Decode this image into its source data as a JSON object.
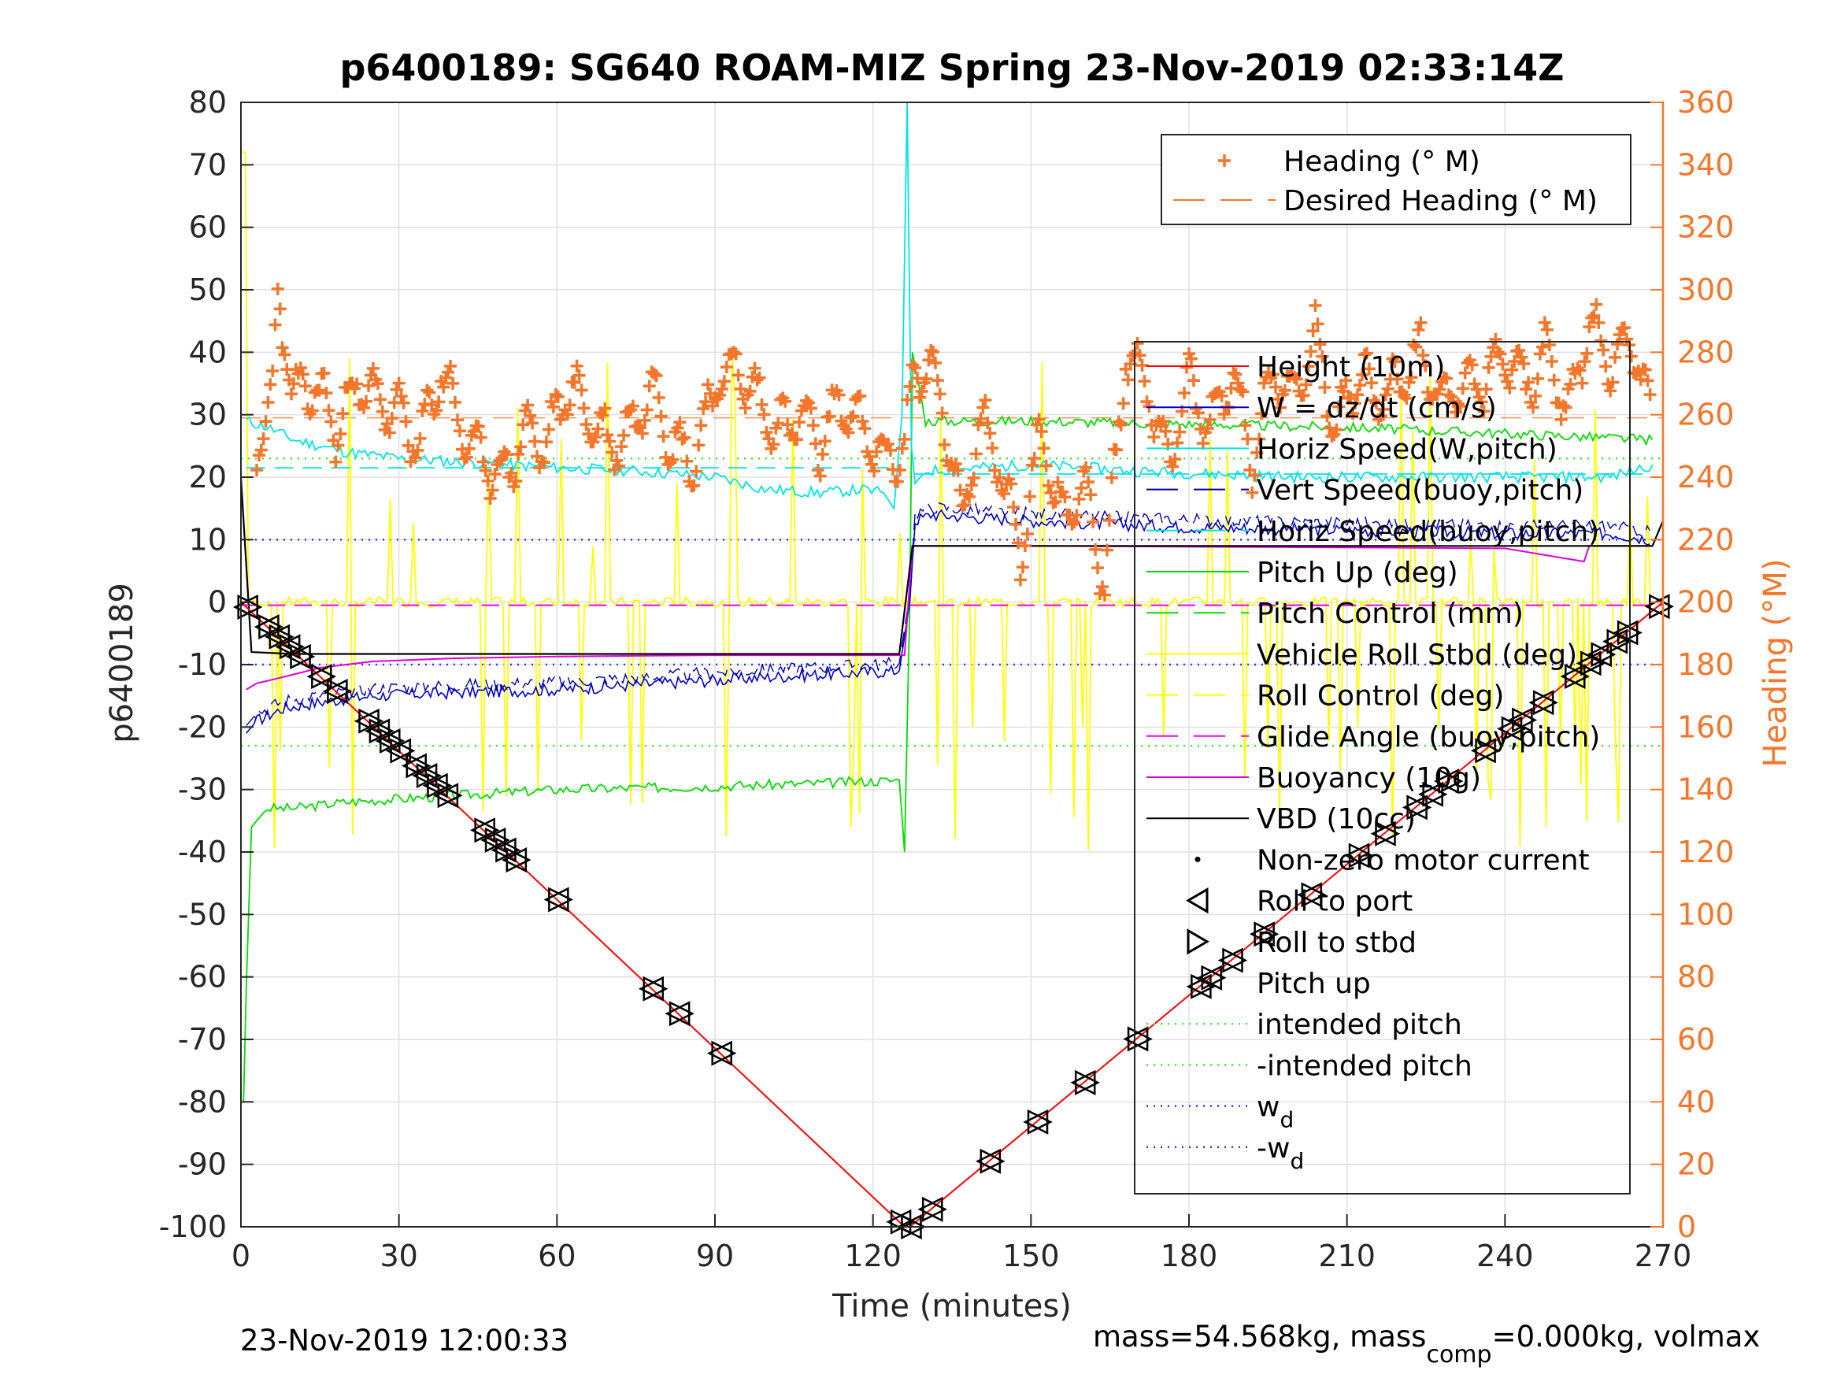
{
  "chart_data": {
    "type": "line",
    "title": "p6400189: SG640 ROAM-MIZ Spring 23-Nov-2019 02:33:14Z",
    "xlabel": "Time (minutes)",
    "ylabel_left": "p6400189",
    "ylabel_right": "Heading (°M)",
    "xlim": [
      0,
      270
    ],
    "ylim_left": [
      -100,
      80
    ],
    "ylim_right": [
      0,
      360
    ],
    "xticks": [
      "0",
      "30",
      "60",
      "90",
      "120",
      "150",
      "180",
      "210",
      "240",
      "270"
    ],
    "yticks_left": [
      "80",
      "70",
      "60",
      "50",
      "40",
      "30",
      "20",
      "10",
      "0",
      "-10",
      "-20",
      "-30",
      "-40",
      "-50",
      "-60",
      "-70",
      "-80",
      "-90",
      "-100"
    ],
    "yticks_right": [
      "360",
      "340",
      "320",
      "300",
      "280",
      "260",
      "240",
      "220",
      "200",
      "180",
      "160",
      "140",
      "120",
      "100",
      "80",
      "60",
      "40",
      "20",
      "0"
    ],
    "grid": true,
    "footer_left": "23-Nov-2019 12:00:33",
    "footer_right_parts": [
      "mass=54.568kg, mass",
      "comp",
      "=0.000kg, volmax"
    ],
    "legend_heading": {
      "placement": "top-right",
      "entries": [
        {
          "label": "Heading (° M)",
          "color": "#f4762a",
          "style": "plus"
        },
        {
          "label": "Desired Heading (° M)",
          "color": "#f4762a",
          "style": "dashed"
        }
      ]
    },
    "legend_main": {
      "placement": "right",
      "entries": [
        {
          "label": "Height (10m)",
          "color": "#ff0000",
          "style": "solid"
        },
        {
          "label": "W = dz/dt (cm/s)",
          "color": "#0000cc",
          "style": "solid"
        },
        {
          "label": "Horiz Speed(W,pitch)",
          "color": "#00e5e5",
          "style": "solid"
        },
        {
          "label": "Vert Speed(buoy,pitch)",
          "color": "#0000aa",
          "style": "dashed"
        },
        {
          "label": "Horiz Speed(buoy,pitch)",
          "color": "#00e5e5",
          "style": "dashed"
        },
        {
          "label": "Pitch Up (deg)",
          "color": "#00dd00",
          "style": "solid"
        },
        {
          "label": "Pitch Control (mm)",
          "color": "#00dd00",
          "style": "dashed"
        },
        {
          "label": "Vehicle Roll Stbd (deg)",
          "color": "#ffff00",
          "style": "solid"
        },
        {
          "label": "Roll Control (deg)",
          "color": "#ffff00",
          "style": "dashed"
        },
        {
          "label": "Glide Angle (buoy,pitch)",
          "color": "#ee00ee",
          "style": "dashed"
        },
        {
          "label": "Buoyancy (10g)",
          "color": "#dd00dd",
          "style": "solid"
        },
        {
          "label": "VBD (10cc)",
          "color": "#000000",
          "style": "solid"
        },
        {
          "label": "Non-zero motor current",
          "color": "#000000",
          "style": "dot"
        },
        {
          "label": "Roll to port",
          "color": "#000000",
          "style": "tri-left"
        },
        {
          "label": "Roll to stbd",
          "color": "#000000",
          "style": "tri-right"
        },
        {
          "label": "Pitch up",
          "color": "#000000",
          "style": "tri-up"
        },
        {
          "label": "intended pitch",
          "color": "#33ee33",
          "style": "dotted"
        },
        {
          "label": "-intended pitch",
          "color": "#33ee33",
          "style": "dotted"
        },
        {
          "label": "w",
          "sub": "d",
          "color": "#3333ff",
          "style": "dotted"
        },
        {
          "label": "-w",
          "sub": "d",
          "color": "#3333ff",
          "style": "dotted"
        }
      ]
    },
    "reference_lines": {
      "intended_pitch": 23,
      "neg_intended_pitch": -23,
      "w_d": 10,
      "neg_w_d": -10,
      "desired_heading": 259
    },
    "series": [
      {
        "name": "Height (10m)",
        "x": [
          0,
          126,
          127,
          270
        ],
        "y": [
          0,
          -100,
          -100,
          0
        ]
      },
      {
        "name": "VBD (10cc)",
        "x": [
          0,
          2,
          10,
          60,
          90,
          125,
          127.5,
          180,
          240,
          268,
          270
        ],
        "y": [
          20,
          -8,
          -8.3,
          -8.3,
          -8.3,
          -8.3,
          9,
          9,
          9,
          9,
          13
        ]
      },
      {
        "name": "W = dz/dt (cm/s)",
        "x": [
          1,
          3,
          8,
          15,
          25,
          40,
          60,
          80,
          100,
          125,
          127,
          128,
          131,
          150,
          180,
          210,
          240,
          260,
          268
        ],
        "y": [
          -21,
          -19,
          -17,
          -16,
          -15,
          -14.5,
          -14,
          -13,
          -12,
          -11,
          0,
          13,
          14,
          13,
          12,
          11.5,
          11,
          11,
          10
        ]
      },
      {
        "name": "Horiz Speed(W,pitch)",
        "x": [
          1,
          5,
          10,
          20,
          30,
          50,
          60,
          75,
          90,
          100,
          110,
          118,
          122,
          124,
          125.5,
          126.5,
          127.3,
          128,
          130,
          150,
          170,
          200,
          230,
          260,
          268
        ],
        "y": [
          29,
          28,
          26,
          24,
          23,
          22,
          21.5,
          21,
          20,
          18,
          17.5,
          18,
          17.5,
          15,
          30,
          80,
          25,
          19,
          21,
          22,
          21,
          20,
          20,
          20,
          22
        ]
      },
      {
        "name": "Pitch Up (deg)",
        "x": [
          0.5,
          1,
          2,
          5,
          10,
          20,
          40,
          60,
          90,
          110,
          125,
          126,
          127,
          127.5,
          130,
          150,
          180,
          210,
          240,
          268
        ],
        "y": [
          -80,
          -62,
          -36,
          -33,
          -33,
          -32,
          -31,
          -30,
          -29.5,
          -29,
          -28.5,
          -40,
          0,
          40,
          29,
          29,
          28.5,
          28,
          27,
          26
        ]
      },
      {
        "name": "Buoyancy (10g)",
        "x": [
          1,
          3,
          8,
          15,
          25,
          40,
          60,
          90,
          126,
          127.5,
          150,
          200,
          240,
          255,
          256,
          268
        ],
        "y": [
          -14,
          -13,
          -12,
          -10.5,
          -9.5,
          -9,
          -8.7,
          -8.5,
          -8.5,
          9,
          9,
          8.8,
          8.6,
          6.5,
          9,
          9
        ]
      },
      {
        "name": "Glide Angle (buoy,pitch)",
        "x": [
          0,
          270
        ],
        "y": [
          -0.5,
          -0.5
        ]
      },
      {
        "name": "Heading (° M)",
        "x": [
          3,
          6,
          7,
          10,
          14,
          18,
          22,
          26,
          30,
          34,
          38,
          42,
          46,
          50,
          54,
          58,
          62,
          66,
          70,
          74,
          78,
          82,
          86,
          90,
          94,
          98,
          102,
          106,
          110,
          114,
          118,
          122,
          126,
          128,
          131,
          134,
          137,
          140,
          144,
          148,
          152,
          156,
          160,
          164,
          168,
          172,
          176,
          180,
          184,
          188,
          192,
          196,
          200,
          204,
          208,
          212,
          216,
          220,
          224,
          228,
          232,
          236,
          240,
          244,
          248,
          252,
          256,
          260,
          264,
          268
        ],
        "y": [
          250,
          265,
          300,
          265,
          270,
          255,
          270,
          265,
          260,
          250,
          275,
          255,
          245,
          240,
          255,
          250,
          270,
          260,
          250,
          255,
          270,
          250,
          245,
          270,
          275,
          265,
          255,
          260,
          250,
          265,
          255,
          245,
          250,
          275,
          275,
          255,
          225,
          260,
          245,
          215,
          255,
          225,
          240,
          205,
          280,
          270,
          245,
          270,
          255,
          275,
          245,
          275,
          265,
          285,
          255,
          275,
          265,
          270,
          280,
          265,
          270,
          270,
          280,
          270,
          280,
          260,
          290,
          275,
          285,
          260
        ]
      }
    ]
  }
}
